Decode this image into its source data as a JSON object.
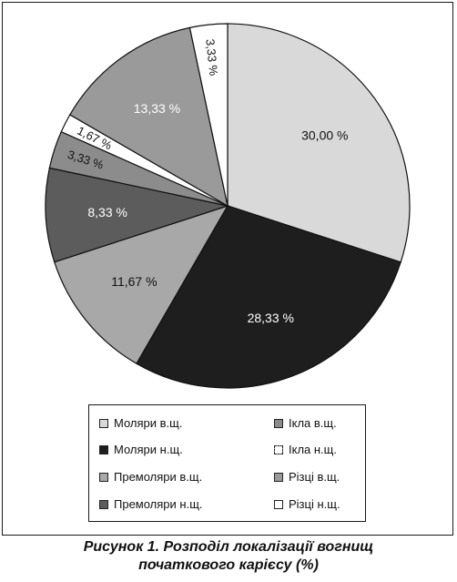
{
  "chart_data": {
    "type": "pie",
    "slices": [
      {
        "category": "Моляри в.щ.",
        "value": 30.0,
        "label": "30,00 %",
        "color": "#d9d9d9",
        "label_color": "#111111"
      },
      {
        "category": "Моляри н.щ.",
        "value": 28.33,
        "label": "28,33 %",
        "color": "#1e1e1e",
        "label_color": "#ffffff"
      },
      {
        "category": "Премоляри в.щ.",
        "value": 11.67,
        "label": "11,67 %",
        "color": "#a8a8a8",
        "label_color": "#111111"
      },
      {
        "category": "Премоляри н.щ.",
        "value": 8.33,
        "label": "8,33 %",
        "color": "#5c5c5c",
        "label_color": "#ffffff"
      },
      {
        "category": "Ікла в.щ.",
        "value": 3.33,
        "label": "3,33 %",
        "color": "#8c8c8c",
        "label_color": "#111111"
      },
      {
        "category": "Ікла н.щ.",
        "value": 1.67,
        "label": "1,67 %",
        "color": "#ffffff",
        "label_color": "#111111"
      },
      {
        "category": "Різці в.щ.",
        "value": 13.33,
        "label": "13,33 %",
        "color": "#9a9a9a",
        "label_color": "#ffffff"
      },
      {
        "category": "Різці н.щ.",
        "value": 3.33,
        "label": "3,33 %",
        "color": "#ffffff",
        "label_color": "#111111"
      }
    ],
    "legend_placement": "bottom",
    "legend": [
      {
        "label": "Моляри в.щ.",
        "color": "#d9d9d9",
        "dashed": false
      },
      {
        "label": "Ікла в.щ.",
        "color": "#8c8c8c",
        "dashed": false
      },
      {
        "label": "Моляри н.щ.",
        "color": "#1e1e1e",
        "dashed": false
      },
      {
        "label": "Ікла н.щ.",
        "color": "#ffffff",
        "dashed": true
      },
      {
        "label": "Премоляри в.щ.",
        "color": "#a8a8a8",
        "dashed": false
      },
      {
        "label": "Різці в.щ.",
        "color": "#9a9a9a",
        "dashed": false
      },
      {
        "label": "Премоляри н.щ.",
        "color": "#5c5c5c",
        "dashed": false
      },
      {
        "label": "Різці н.щ.",
        "color": "#ffffff",
        "dashed": false
      }
    ]
  },
  "caption": {
    "line1": "Рисунок 1. Розподіл локалізації вогнищ",
    "line2": "початкового карієсу (%)"
  }
}
